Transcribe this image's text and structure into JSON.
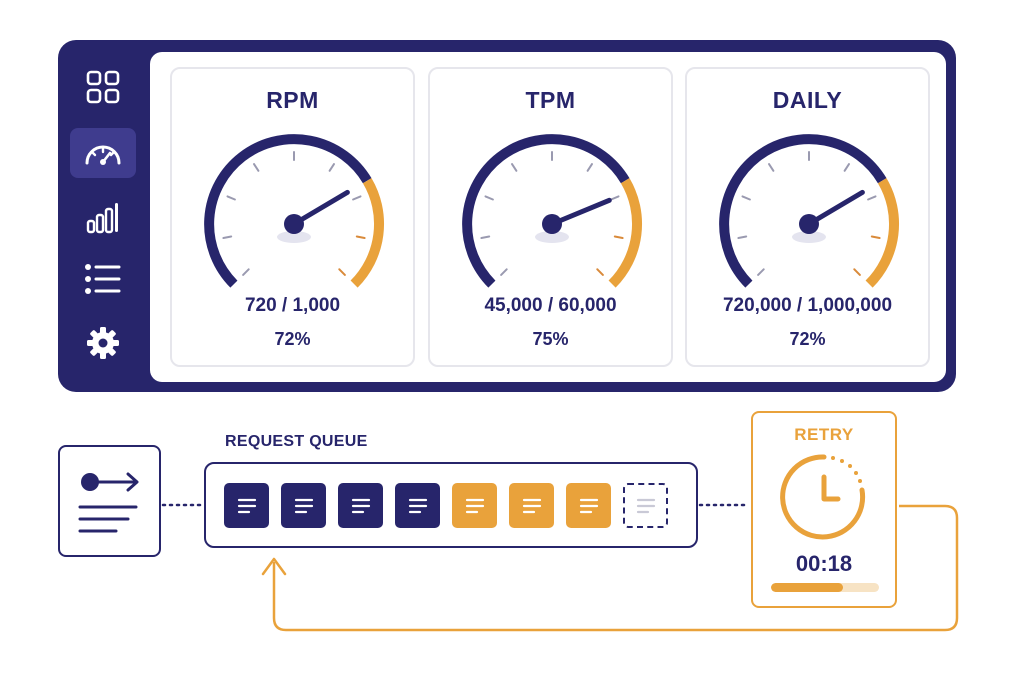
{
  "sidebar": {
    "items": [
      {
        "icon": "grid-icon",
        "active": false
      },
      {
        "icon": "speedometer-icon",
        "active": true
      },
      {
        "icon": "bar-chart-icon",
        "active": false
      },
      {
        "icon": "list-icon",
        "active": false
      },
      {
        "icon": "gear-icon",
        "active": false
      }
    ]
  },
  "gauges": [
    {
      "title": "RPM",
      "value_text": "720 / 1,000",
      "percent_text": "72%",
      "fraction": 0.72
    },
    {
      "title": "TPM",
      "value_text": "45,000 / 60,000",
      "percent_text": "75%",
      "fraction": 0.75
    },
    {
      "title": "DAILY",
      "value_text": "720,000 / 1,000,000",
      "percent_text": "72%",
      "fraction": 0.72
    }
  ],
  "queue": {
    "label": "REQUEST QUEUE",
    "slots": [
      "navy",
      "navy",
      "navy",
      "navy",
      "orange",
      "orange",
      "orange",
      "empty"
    ]
  },
  "client": {
    "icon": "send-request-icon"
  },
  "retry": {
    "label": "RETRY",
    "timer": "00:18",
    "icon": "clock-icon",
    "progress_segments_filled": 2,
    "progress_segments_total": 3
  },
  "colors": {
    "navy": "#27256b",
    "accent": "#e9a23b",
    "accent_light": "#f7e3c4",
    "card_border": "#e6e6ec"
  }
}
